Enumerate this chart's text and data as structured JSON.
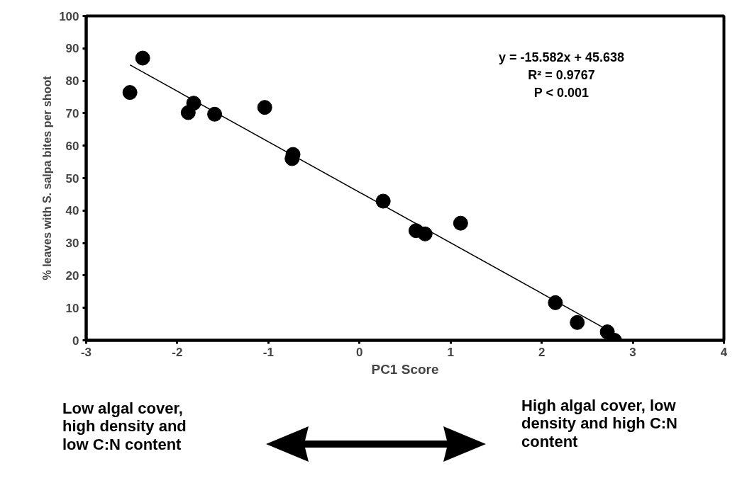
{
  "chart_data": {
    "type": "scatter",
    "xlabel": "PC1 Score",
    "ylabel": "% leaves with S. salpa bites per shoot",
    "xlim": [
      -3,
      4
    ],
    "ylim": [
      0,
      100
    ],
    "xticks": [
      -3,
      -2,
      -1,
      0,
      1,
      2,
      3,
      4
    ],
    "yticks": [
      0,
      10,
      20,
      30,
      40,
      50,
      60,
      70,
      80,
      90,
      100
    ],
    "grid": false,
    "series": [
      {
        "marker": "circle",
        "color": "#000000",
        "x": [
          -2.52,
          -2.38,
          -1.82,
          -1.88,
          -1.59,
          -1.04,
          -0.73,
          -0.74,
          0.26,
          0.62,
          0.72,
          1.11,
          2.15,
          2.39,
          2.72,
          2.8
        ],
        "values": [
          76.4,
          87.0,
          73.1,
          70.2,
          69.7,
          71.8,
          57.3,
          56.0,
          42.9,
          33.8,
          32.8,
          36.1,
          11.6,
          5.5,
          2.6,
          0
        ]
      },
      {
        "type": "line",
        "marker": "none",
        "color": "#000000",
        "x": [
          -2.52,
          2.8
        ],
        "values": [
          84.9,
          2.0
        ]
      }
    ],
    "annotations": [
      "y = -15.582x + 45.638\nR² = 0.9767\nP < 0.001",
      "Low algal cover,\nhigh density and\nlow C:N content",
      "High algal cover, low\ndensity and high C:N\ncontent"
    ]
  }
}
